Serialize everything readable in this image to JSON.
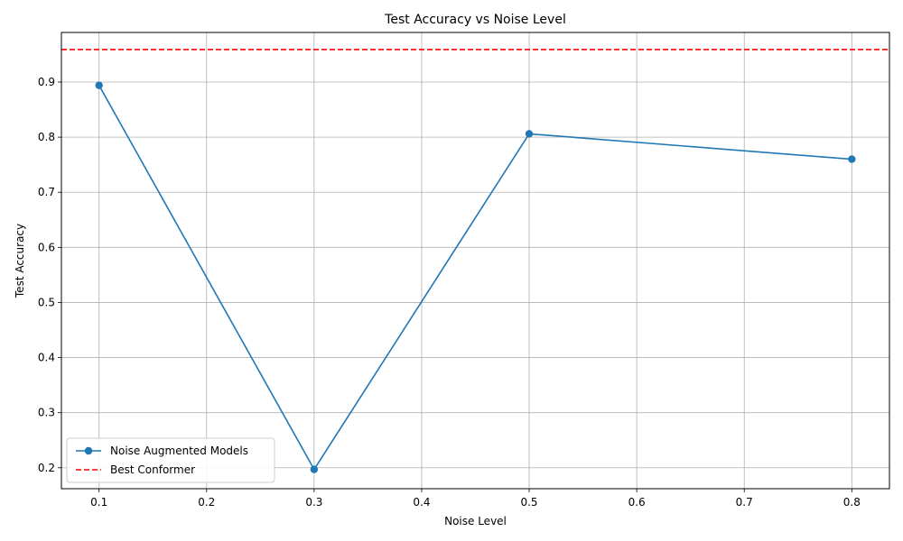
{
  "chart_data": {
    "type": "line",
    "title": "Test Accuracy vs Noise Level",
    "xlabel": "Noise Level",
    "ylabel": "Test Accuracy",
    "xlim": [
      0.065,
      0.835
    ],
    "ylim": [
      0.162,
      0.99
    ],
    "xticks": [
      "0.1",
      "0.2",
      "0.3",
      "0.4",
      "0.5",
      "0.6",
      "0.7",
      "0.8"
    ],
    "yticks": [
      "0.2",
      "0.3",
      "0.4",
      "0.5",
      "0.6",
      "0.7",
      "0.8",
      "0.9"
    ],
    "grid": true,
    "legend_position": "lower-left",
    "series": [
      {
        "name": "Noise Augmented Models",
        "color": "#1f77b4",
        "marker": "circle",
        "x": [
          0.1,
          0.3,
          0.5,
          0.8
        ],
        "y": [
          0.894,
          0.197,
          0.806,
          0.76
        ]
      }
    ],
    "reference_lines": [
      {
        "name": "Best Conformer",
        "color": "#ff0000",
        "style": "dashed",
        "y": 0.959
      }
    ]
  }
}
